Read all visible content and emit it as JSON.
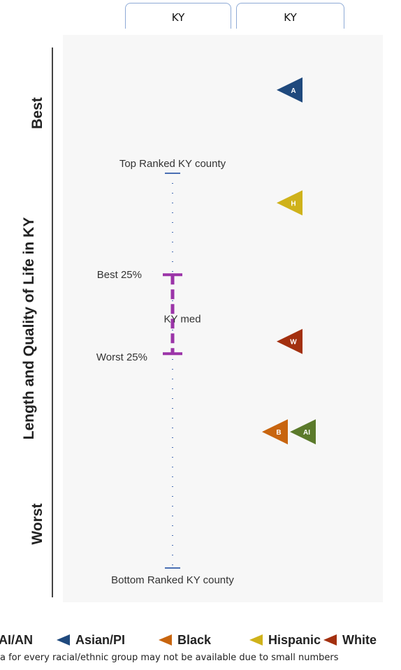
{
  "tabs": [
    "KY",
    "KY"
  ],
  "chart_data": {
    "type": "scatter",
    "title": "",
    "ylabel": "Length and Quality of Life in KY",
    "y_top_label": "Best",
    "y_bottom_label": "Worst",
    "county_range": {
      "top_label": "Top Ranked KY county",
      "bottom_label": "Bottom Ranked KY county",
      "quartile_best_label": "Best 25%",
      "quartile_worst_label": "Worst 25%",
      "median_label": "KY med",
      "top": 0.0,
      "best_25": 0.257,
      "median": 0.357,
      "worst_25": 0.457,
      "bottom": 1.0
    },
    "groups": [
      {
        "name": "AI/AN",
        "letter": "AI",
        "value": 0.655,
        "color": "#5b7a2b"
      },
      {
        "name": "Asian/PI",
        "letter": "A",
        "value": -0.211,
        "color": "#1f497d"
      },
      {
        "name": "Black",
        "letter": "B",
        "value": 0.655,
        "color": "#c8650f"
      },
      {
        "name": "Hispanic",
        "letter": "H",
        "value": 0.075,
        "color": "#cfb21a"
      },
      {
        "name": "White",
        "letter": "W",
        "value": 0.426,
        "color": "#a3300f"
      }
    ],
    "colors": {
      "range_line": "#4a6fb3",
      "quartile_bar": "#9b34a8",
      "axis": "#444444"
    }
  },
  "footnote": "a for every racial/ethnic group may not be available due to small numbers"
}
